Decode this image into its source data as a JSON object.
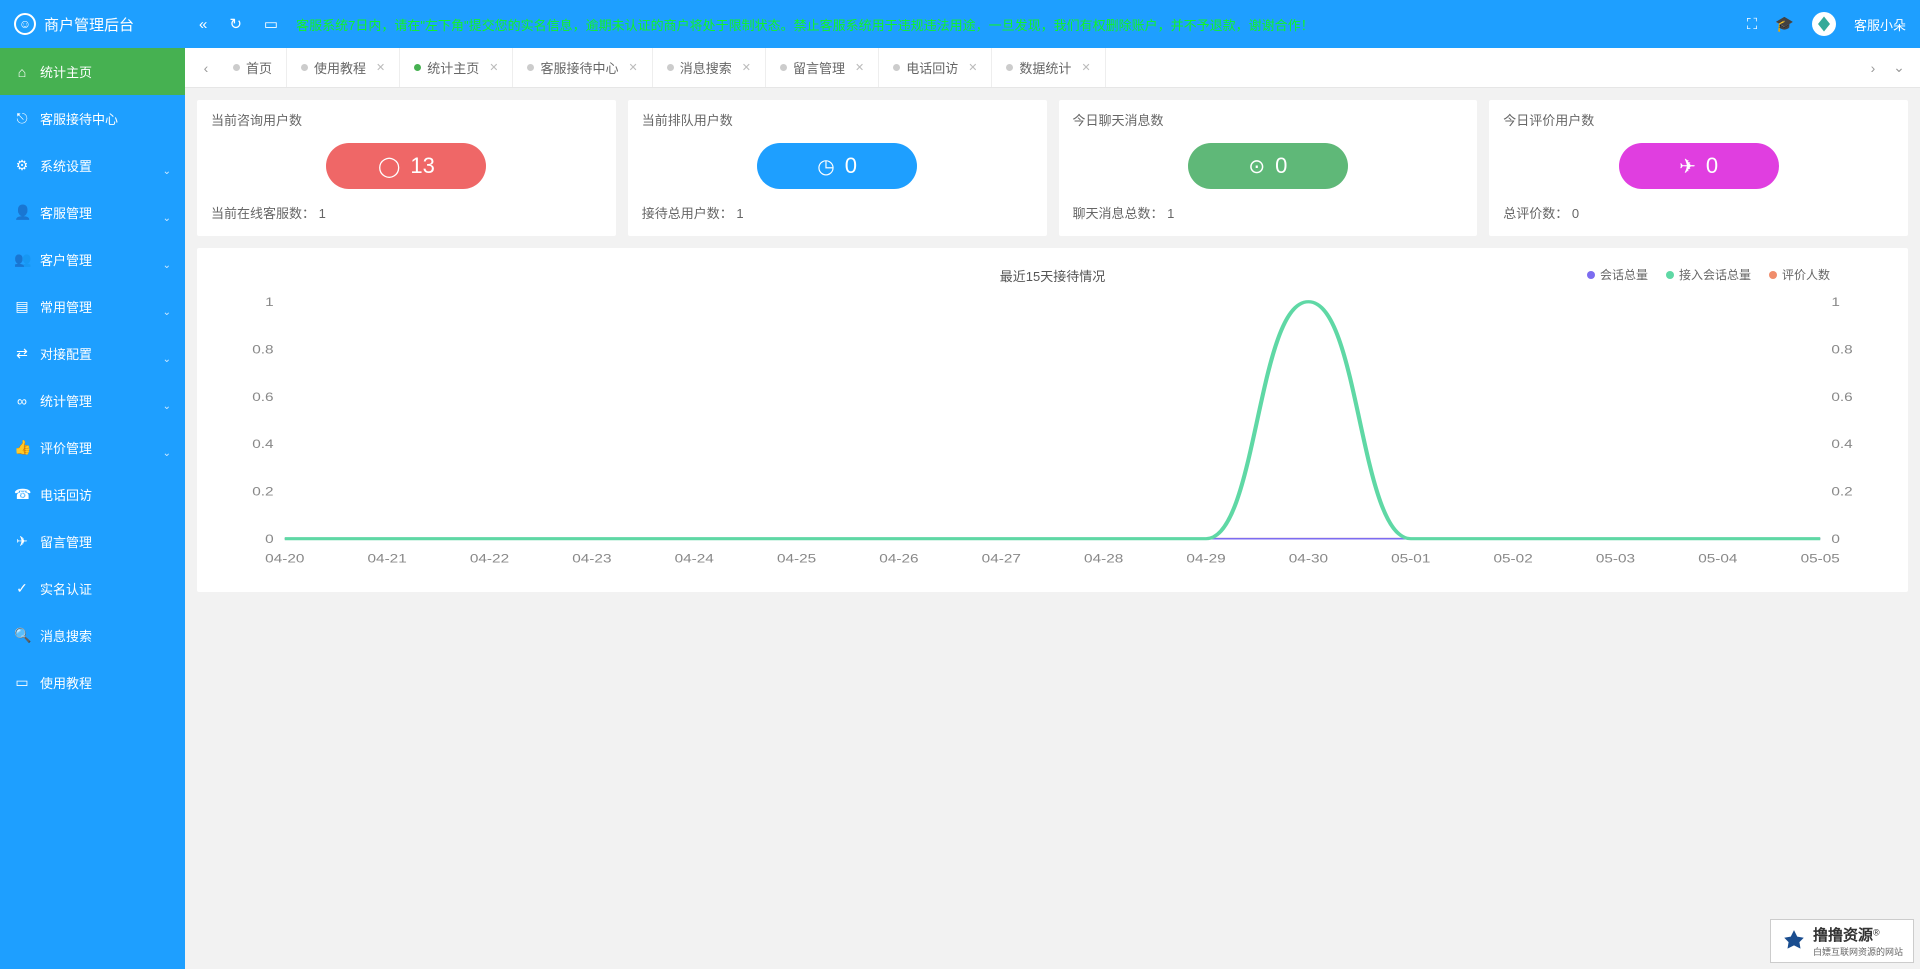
{
  "app": {
    "title": "商户管理后台",
    "username": "客服小朵"
  },
  "topbar": {
    "notice": "客服系统7日内，请在\"左下角\"提交您的实名信息，逾期未认证的商户将处于限制状态。禁止客服系统用于违规违法用途，一旦发现，我们有权删除账户，并不予退款，谢谢合作！"
  },
  "sidebar": {
    "items": [
      {
        "icon": "⌂",
        "label": "统计主页",
        "active": true,
        "expandable": false
      },
      {
        "icon": "⎋",
        "label": "客服接待中心",
        "expandable": false
      },
      {
        "icon": "⚙",
        "label": "系统设置",
        "expandable": true
      },
      {
        "icon": "👤",
        "label": "客服管理",
        "expandable": true
      },
      {
        "icon": "👥",
        "label": "客户管理",
        "expandable": true
      },
      {
        "icon": "▤",
        "label": "常用管理",
        "expandable": true
      },
      {
        "icon": "⇄",
        "label": "对接配置",
        "expandable": true
      },
      {
        "icon": "∞",
        "label": "统计管理",
        "expandable": true
      },
      {
        "icon": "👍",
        "label": "评价管理",
        "expandable": true
      },
      {
        "icon": "☎",
        "label": "电话回访",
        "expandable": false
      },
      {
        "icon": "✈",
        "label": "留言管理",
        "expandable": false
      },
      {
        "icon": "✓",
        "label": "实名认证",
        "expandable": false
      },
      {
        "icon": "🔍",
        "label": "消息搜索",
        "expandable": false
      },
      {
        "icon": "▭",
        "label": "使用教程",
        "expandable": false
      }
    ]
  },
  "tabs": {
    "items": [
      {
        "label": "首页",
        "closable": false
      },
      {
        "label": "使用教程",
        "closable": true
      },
      {
        "label": "统计主页",
        "closable": true,
        "active": true
      },
      {
        "label": "客服接待中心",
        "closable": true
      },
      {
        "label": "消息搜索",
        "closable": true
      },
      {
        "label": "留言管理",
        "closable": true
      },
      {
        "label": "电话回访",
        "closable": true
      },
      {
        "label": "数据统计",
        "closable": true
      }
    ]
  },
  "cards": [
    {
      "title": "当前咨询用户数",
      "value": "13",
      "icon": "◯",
      "color": "#ef6767",
      "sub_label": "当前在线客服数：",
      "sub_value": "1"
    },
    {
      "title": "当前排队用户数",
      "value": "0",
      "icon": "◷",
      "color": "#1e9fff",
      "sub_label": "接待总用户数：",
      "sub_value": "1"
    },
    {
      "title": "今日聊天消息数",
      "value": "0",
      "icon": "⊙",
      "color": "#5fb878",
      "sub_label": "聊天消息总数：",
      "sub_value": "1"
    },
    {
      "title": "今日评价用户数",
      "value": "0",
      "icon": "✈",
      "color": "#e03ee0",
      "sub_label": "总评价数：",
      "sub_value": "0"
    }
  ],
  "chart": {
    "title": "最近15天接待情况",
    "legend": [
      {
        "label": "会话总量",
        "color": "#7c6cf0"
      },
      {
        "label": "接入会话总量",
        "color": "#5fd8a5"
      },
      {
        "label": "评价人数",
        "color": "#f08d6c"
      }
    ],
    "x_labels": [
      "04-20",
      "04-21",
      "04-22",
      "04-23",
      "04-24",
      "04-25",
      "04-26",
      "04-27",
      "04-28",
      "04-29",
      "04-30",
      "05-01",
      "05-02",
      "05-03",
      "05-04",
      "05-05"
    ],
    "y_ticks": [
      0,
      0.2,
      0.4,
      0.6,
      0.8,
      1
    ],
    "y_max": 1,
    "series": {
      "s1": {
        "color": "#7c6cf0",
        "values": [
          0,
          0,
          0,
          0,
          0,
          0,
          0,
          0,
          0,
          0,
          0,
          0,
          0,
          0,
          0,
          0
        ]
      },
      "s2": {
        "color": "#5fd8a5",
        "values": [
          0,
          0,
          0,
          0,
          0,
          0,
          0,
          0,
          0,
          0,
          1,
          0,
          0,
          0,
          0,
          0
        ],
        "width": 3
      },
      "s3": {
        "color": "#f08d6c",
        "values": [
          0,
          0,
          0,
          0,
          0,
          0,
          0,
          0,
          0,
          0,
          0,
          0,
          0,
          0,
          0,
          0
        ]
      }
    },
    "grid_color": "#eeeeee",
    "bg": "#ffffff"
  },
  "watermark": {
    "main": "撸撸资源",
    "sub": "白嫖互联网资源的网站"
  }
}
